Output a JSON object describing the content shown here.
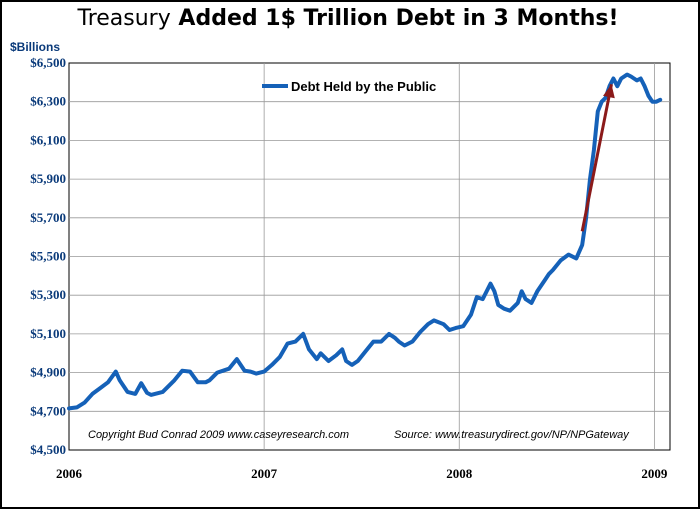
{
  "chart_data": {
    "type": "line",
    "title_part1": "Treasury",
    "title_part2": "Added 1$ Trillion Debt in 3 Months!",
    "ylabel": "$Billions",
    "xlabel": "",
    "ylim": [
      4500,
      6500
    ],
    "yticks": [
      4500,
      4700,
      4900,
      5100,
      5300,
      5500,
      5700,
      5900,
      6100,
      6300,
      6500
    ],
    "ytick_labels": [
      "$4,500",
      "$4,700",
      "$4,900",
      "$5,100",
      "$5,300",
      "$5,500",
      "$5,700",
      "$5,900",
      "$6,100",
      "$6,300",
      "$6,500"
    ],
    "xlim": [
      2006.0,
      2009.08
    ],
    "xticks": [
      2006,
      2007,
      2008,
      2009
    ],
    "xtick_labels": [
      "2006",
      "2007",
      "2008",
      "2009"
    ],
    "grid": true,
    "legend_position": "top-center",
    "series": [
      {
        "name": "Debt Held by the Public",
        "color": "#1561b8",
        "x": [
          2006.0,
          2006.04,
          2006.08,
          2006.12,
          2006.16,
          2006.2,
          2006.24,
          2006.26,
          2006.3,
          2006.34,
          2006.37,
          2006.4,
          2006.42,
          2006.44,
          2006.48,
          2006.54,
          2006.58,
          2006.62,
          2006.66,
          2006.7,
          2006.72,
          2006.76,
          2006.82,
          2006.86,
          2006.9,
          2006.93,
          2006.96,
          2007.0,
          2007.04,
          2007.08,
          2007.12,
          2007.16,
          2007.2,
          2007.23,
          2007.25,
          2007.27,
          2007.29,
          2007.33,
          2007.37,
          2007.4,
          2007.42,
          2007.45,
          2007.48,
          2007.52,
          2007.56,
          2007.6,
          2007.64,
          2007.67,
          2007.69,
          2007.72,
          2007.76,
          2007.8,
          2007.84,
          2007.87,
          2007.92,
          2007.95,
          2007.98,
          2008.02,
          2008.06,
          2008.09,
          2008.12,
          2008.16,
          2008.18,
          2008.2,
          2008.23,
          2008.26,
          2008.28,
          2008.3,
          2008.32,
          2008.34,
          2008.37,
          2008.4,
          2008.42,
          2008.44,
          2008.46,
          2008.48,
          2008.52,
          2008.56,
          2008.6,
          2008.63,
          2008.65,
          2008.67,
          2008.69,
          2008.71,
          2008.73,
          2008.75,
          2008.77,
          2008.79,
          2008.81,
          2008.83,
          2008.86,
          2008.88,
          2008.91,
          2008.93,
          2008.95,
          2008.97,
          2008.99,
          2009.01,
          2009.03
        ],
        "values": [
          4715,
          4720,
          4745,
          4790,
          4820,
          4850,
          4905,
          4860,
          4800,
          4790,
          4845,
          4795,
          4785,
          4790,
          4800,
          4860,
          4910,
          4905,
          4850,
          4850,
          4860,
          4900,
          4920,
          4970,
          4910,
          4905,
          4895,
          4905,
          4940,
          4980,
          5050,
          5060,
          5100,
          5020,
          4995,
          4970,
          5000,
          4960,
          4990,
          5020,
          4960,
          4940,
          4960,
          5010,
          5060,
          5060,
          5100,
          5080,
          5060,
          5040,
          5060,
          5110,
          5150,
          5170,
          5150,
          5120,
          5130,
          5140,
          5200,
          5290,
          5280,
          5360,
          5320,
          5250,
          5230,
          5220,
          5240,
          5260,
          5320,
          5280,
          5260,
          5320,
          5350,
          5380,
          5410,
          5430,
          5480,
          5510,
          5490,
          5560,
          5700,
          5900,
          6050,
          6250,
          6300,
          6320,
          6380,
          6420,
          6380,
          6420,
          6440,
          6430,
          6410,
          6420,
          6380,
          6330,
          6300,
          6300,
          6310
        ]
      }
    ],
    "annotations": {
      "copyright": "Copyright Bud Conrad  2009 www.caseyresearch.com",
      "source": "Source: www.treasurydirect.gov/NP/NPGateway",
      "arrow_from": {
        "x": 2008.63,
        "y": 5630
      },
      "arrow_to": {
        "x": 2008.78,
        "y": 6390
      },
      "arrow_color": "#8b1a1a"
    }
  }
}
